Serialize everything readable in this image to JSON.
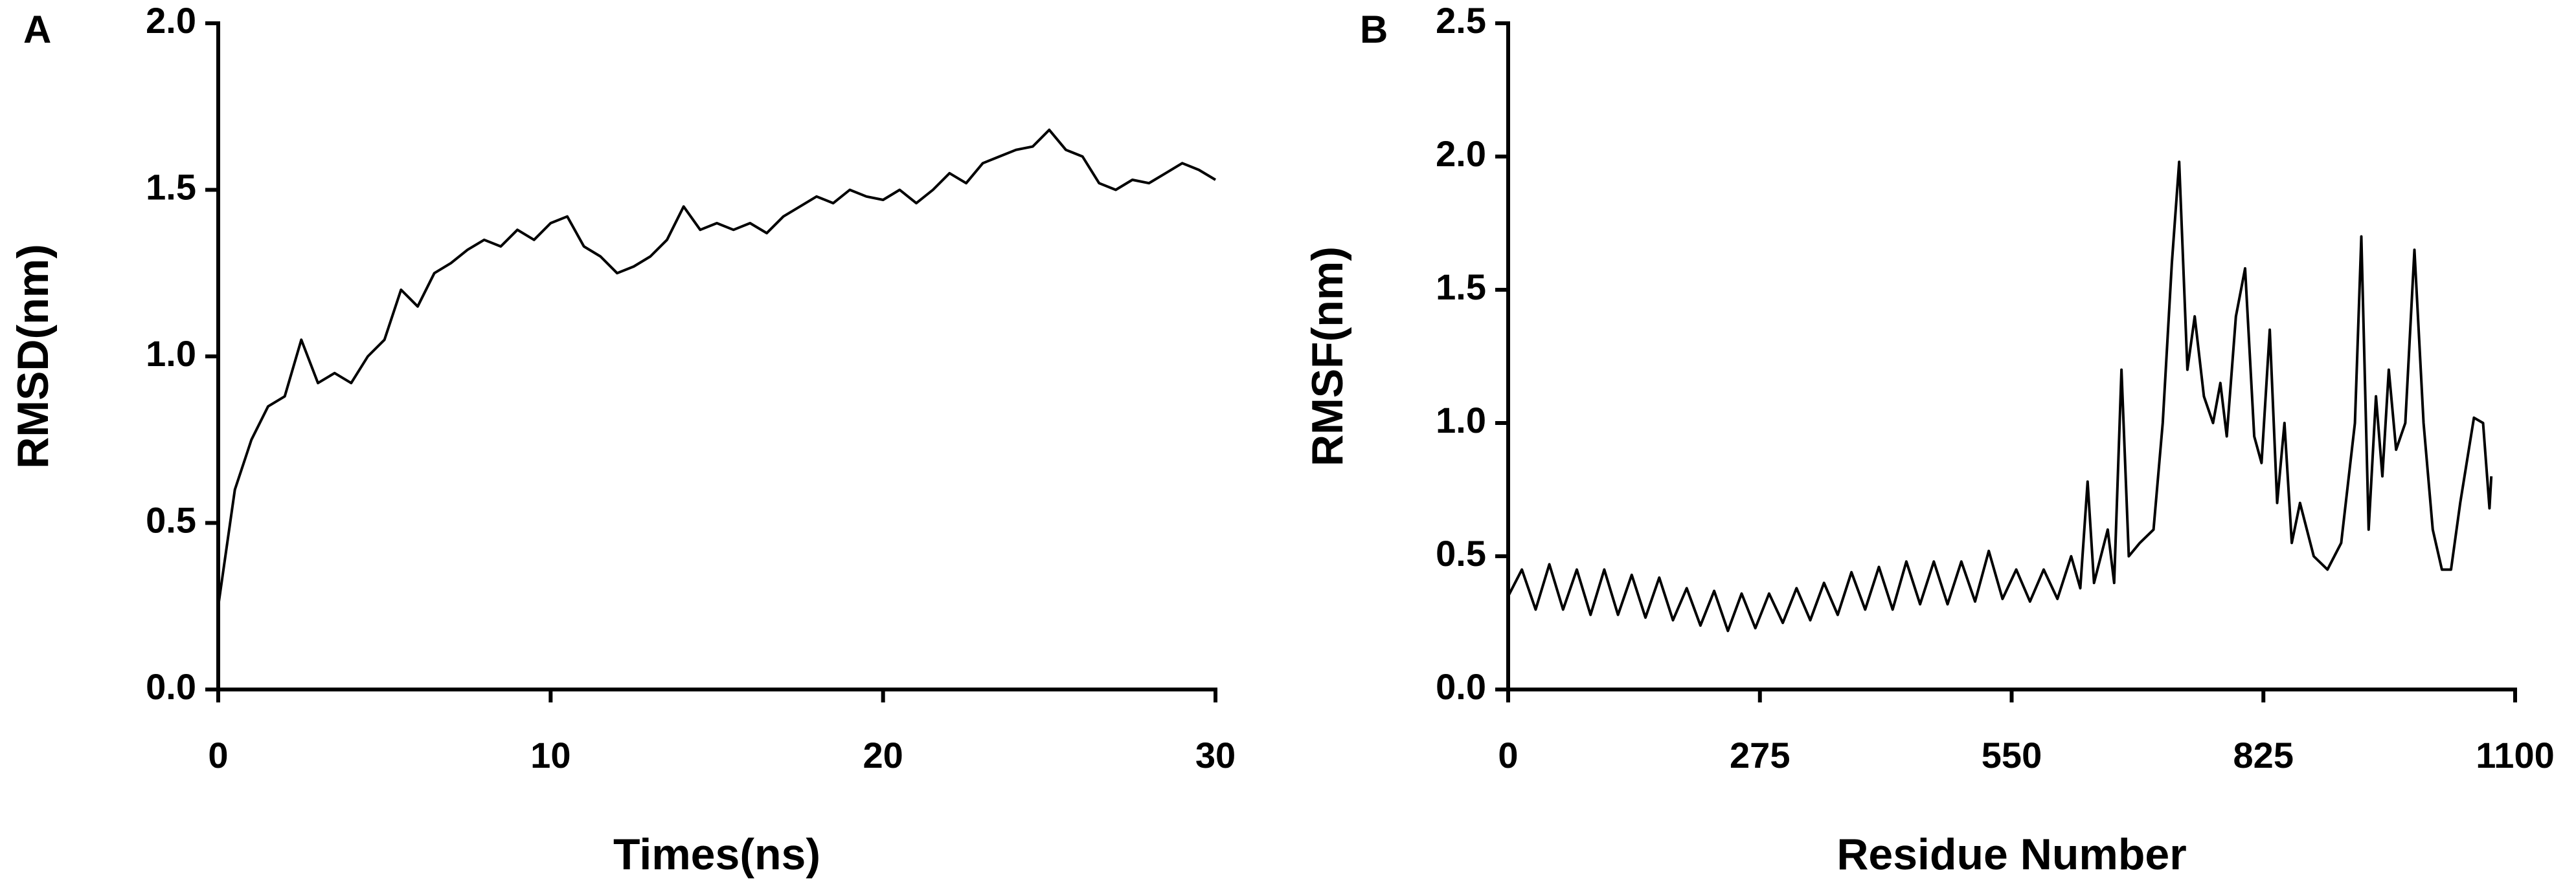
{
  "chart_data": [
    {
      "type": "line",
      "panel_label": "A",
      "xlabel": "Times(ns)",
      "ylabel": "RMSD(nm)",
      "color": "#000000",
      "x": [
        0,
        0.5,
        1,
        1.5,
        2,
        2.5,
        3,
        3.5,
        4,
        4.5,
        5,
        5.5,
        6,
        6.5,
        7,
        7.5,
        8,
        8.5,
        9,
        9.5,
        10,
        10.5,
        11,
        11.5,
        12,
        12.5,
        13,
        13.5,
        14,
        14.5,
        15,
        15.5,
        16,
        16.5,
        17,
        17.5,
        18,
        18.5,
        19,
        19.5,
        20,
        20.5,
        21,
        21.5,
        22,
        22.5,
        23,
        23.5,
        24,
        24.5,
        25,
        25.5,
        26,
        26.5,
        27,
        27.5,
        28,
        28.5,
        29,
        29.5,
        30
      ],
      "values": [
        0.25,
        0.6,
        0.75,
        0.85,
        0.88,
        1.05,
        0.92,
        0.95,
        0.92,
        1.0,
        1.05,
        1.2,
        1.15,
        1.25,
        1.28,
        1.32,
        1.35,
        1.33,
        1.38,
        1.35,
        1.4,
        1.42,
        1.33,
        1.3,
        1.25,
        1.27,
        1.3,
        1.35,
        1.45,
        1.38,
        1.4,
        1.38,
        1.4,
        1.37,
        1.42,
        1.45,
        1.48,
        1.46,
        1.5,
        1.48,
        1.47,
        1.5,
        1.46,
        1.5,
        1.55,
        1.52,
        1.58,
        1.6,
        1.62,
        1.63,
        1.68,
        1.62,
        1.6,
        1.52,
        1.5,
        1.53,
        1.52,
        1.55,
        1.58,
        1.56,
        1.53
      ],
      "xlim": [
        0,
        30
      ],
      "xticks": [
        0,
        10,
        20,
        30
      ],
      "ylim": [
        0,
        2
      ],
      "yticks": [
        {
          "value": 0,
          "label": "0.0"
        },
        0.5,
        {
          "value": 1,
          "label": "1.0"
        },
        1.5,
        {
          "value": 2,
          "label": "2.0"
        }
      ]
    },
    {
      "type": "line",
      "panel_label": "B",
      "xlabel": "Residue Number",
      "ylabel": "RMSF(nm)",
      "color": "#000000",
      "x": [
        0,
        15,
        30,
        45,
        60,
        75,
        90,
        105,
        120,
        135,
        150,
        165,
        180,
        195,
        210,
        225,
        240,
        255,
        270,
        285,
        300,
        315,
        330,
        345,
        360,
        375,
        390,
        405,
        420,
        435,
        450,
        465,
        480,
        495,
        510,
        525,
        540,
        555,
        570,
        585,
        600,
        615,
        625,
        633,
        640,
        655,
        662,
        670,
        678,
        690,
        705,
        715,
        725,
        733,
        742,
        750,
        760,
        770,
        778,
        785,
        795,
        805,
        815,
        823,
        832,
        840,
        848,
        856,
        865,
        880,
        895,
        910,
        925,
        932,
        940,
        948,
        955,
        962,
        970,
        980,
        990,
        1000,
        1010,
        1020,
        1030,
        1040,
        1055,
        1065,
        1072,
        1074
      ],
      "values": [
        0.35,
        0.45,
        0.3,
        0.47,
        0.3,
        0.45,
        0.28,
        0.45,
        0.28,
        0.43,
        0.27,
        0.42,
        0.26,
        0.38,
        0.24,
        0.37,
        0.22,
        0.36,
        0.23,
        0.36,
        0.25,
        0.38,
        0.26,
        0.4,
        0.28,
        0.44,
        0.3,
        0.46,
        0.3,
        0.48,
        0.32,
        0.48,
        0.32,
        0.48,
        0.33,
        0.52,
        0.34,
        0.45,
        0.33,
        0.45,
        0.34,
        0.5,
        0.38,
        0.78,
        0.4,
        0.6,
        0.4,
        1.2,
        0.5,
        0.55,
        0.6,
        1.0,
        1.6,
        1.98,
        1.2,
        1.4,
        1.1,
        1.0,
        1.15,
        0.95,
        1.4,
        1.58,
        0.95,
        0.85,
        1.35,
        0.7,
        1.0,
        0.55,
        0.7,
        0.5,
        0.45,
        0.55,
        1.0,
        1.7,
        0.6,
        1.1,
        0.8,
        1.2,
        0.9,
        1.0,
        1.65,
        1.0,
        0.6,
        0.45,
        0.45,
        0.7,
        1.02,
        1.0,
        0.68,
        0.8
      ],
      "xlim": [
        0,
        1100
      ],
      "xticks": [
        0,
        275,
        550,
        825,
        1100
      ],
      "ylim": [
        0,
        2.5
      ],
      "yticks": [
        {
          "value": 0,
          "label": "0.0"
        },
        0.5,
        {
          "value": 1,
          "label": "1.0"
        },
        1.5,
        {
          "value": 2,
          "label": "2.0"
        },
        2.5
      ]
    }
  ]
}
